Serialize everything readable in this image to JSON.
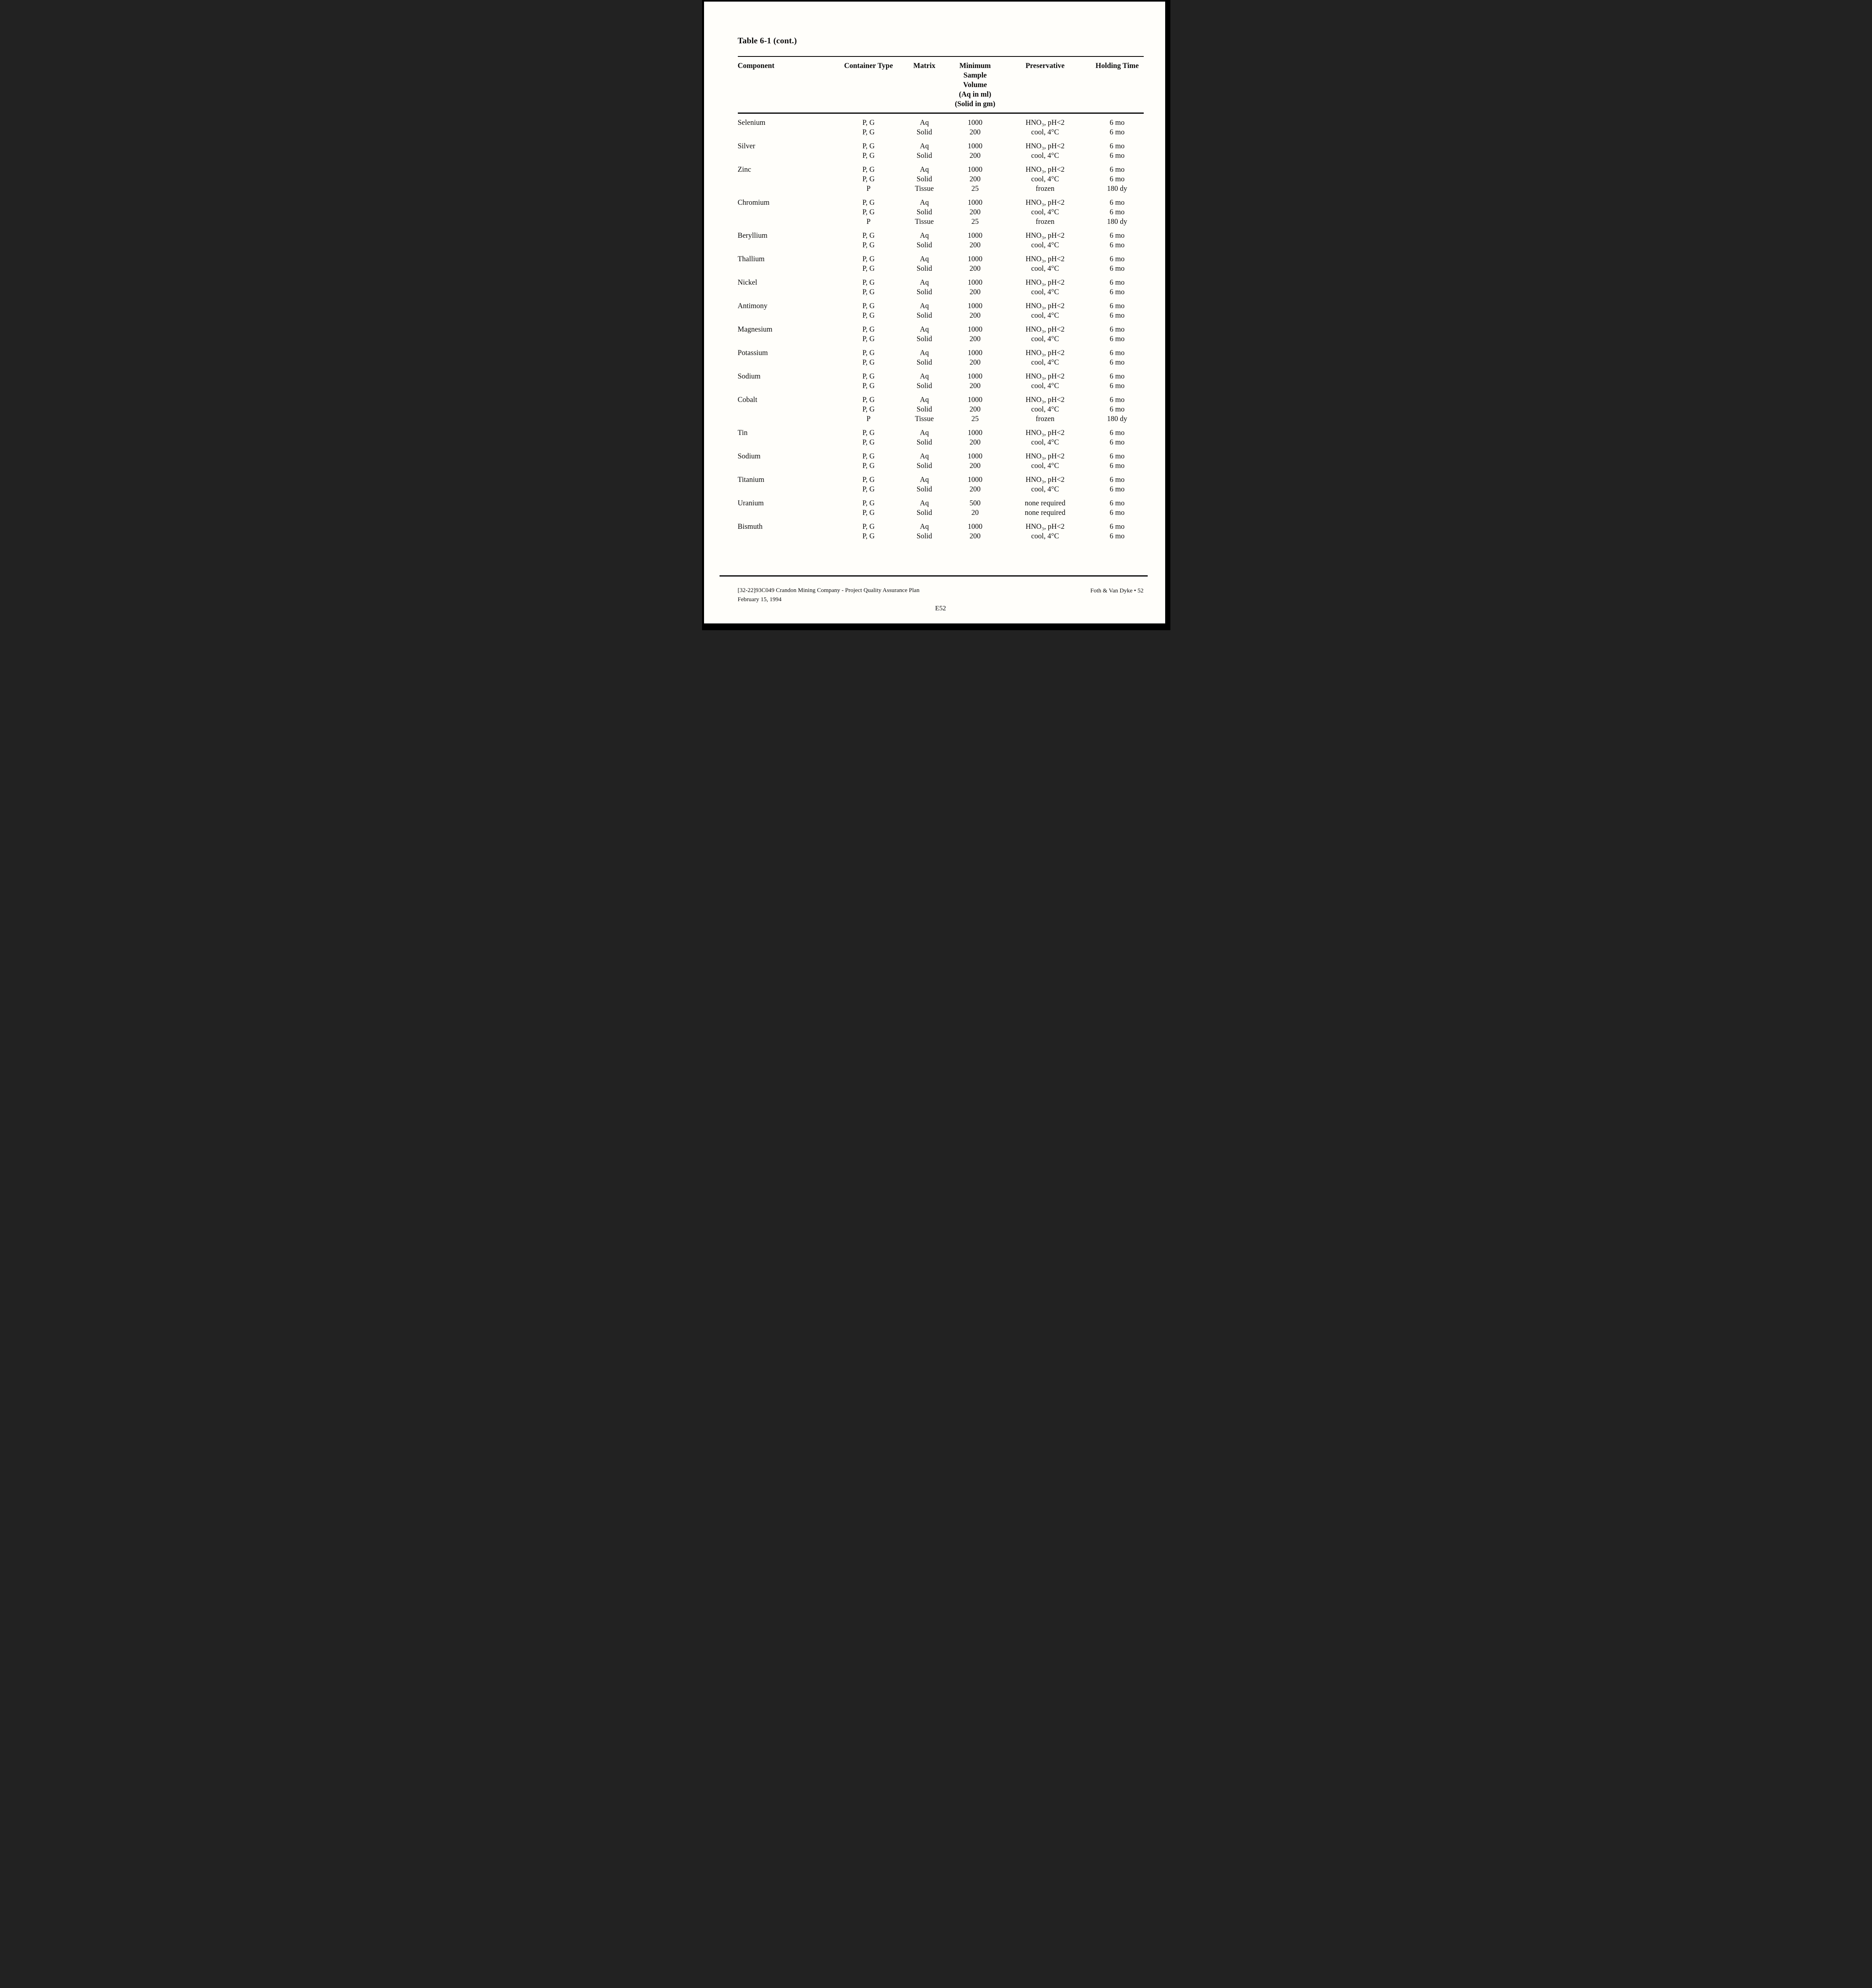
{
  "page": {
    "title": "Table 6-1 (cont.)",
    "page_number_center": "E52"
  },
  "footer": {
    "left_line1": "[32-22]93C049 Crandon Mining Company - Project Quality Assurance Plan",
    "left_line2": "February 15, 1994",
    "right": "Foth & Van Dyke • 52"
  },
  "table": {
    "headers": [
      "Component",
      "Container Type",
      "Matrix",
      "Minimum\nSample Volume\n(Aq in ml)\n(Solid in gm)",
      "Preservative",
      "Holding Time"
    ],
    "groups": [
      {
        "component": "Selenium",
        "rows": [
          [
            "P, G",
            "Aq",
            "1000",
            "HNO₃, pH<2",
            "6 mo"
          ],
          [
            "P, G",
            "Solid",
            "200",
            "cool, 4°C",
            "6 mo"
          ]
        ]
      },
      {
        "component": "Silver",
        "rows": [
          [
            "P, G",
            "Aq",
            "1000",
            "HNO₃, pH<2",
            "6 mo"
          ],
          [
            "P, G",
            "Solid",
            "200",
            "cool, 4°C",
            "6 mo"
          ]
        ]
      },
      {
        "component": "Zinc",
        "rows": [
          [
            "P, G",
            "Aq",
            "1000",
            "HNO₃, pH<2",
            "6 mo"
          ],
          [
            "P, G",
            "Solid",
            "200",
            "cool, 4°C",
            "6 mo"
          ],
          [
            "P",
            "Tissue",
            "25",
            "frozen",
            "180 dy"
          ]
        ]
      },
      {
        "component": "Chromium",
        "rows": [
          [
            "P, G",
            "Aq",
            "1000",
            "HNO₃, pH<2",
            "6 mo"
          ],
          [
            "P, G",
            "Solid",
            "200",
            "cool, 4°C",
            "6 mo"
          ],
          [
            "P",
            "Tissue",
            "25",
            "frozen",
            "180 dy"
          ]
        ]
      },
      {
        "component": "Beryllium",
        "rows": [
          [
            "P, G",
            "Aq",
            "1000",
            "HNO₃, pH<2",
            "6 mo"
          ],
          [
            "P, G",
            "Solid",
            "200",
            "cool, 4°C",
            "6 mo"
          ]
        ]
      },
      {
        "component": "Thallium",
        "rows": [
          [
            "P, G",
            "Aq",
            "1000",
            "HNO₃, pH<2",
            "6 mo"
          ],
          [
            "P, G",
            "Solid",
            "200",
            "cool, 4°C",
            "6 mo"
          ]
        ]
      },
      {
        "component": "Nickel",
        "rows": [
          [
            "P, G",
            "Aq",
            "1000",
            "HNO₃, pH<2",
            "6 mo"
          ],
          [
            "P, G",
            "Solid",
            "200",
            "cool, 4°C",
            "6 mo"
          ]
        ]
      },
      {
        "component": "Antimony",
        "rows": [
          [
            "P, G",
            "Aq",
            "1000",
            "HNO₃, pH<2",
            "6 mo"
          ],
          [
            "P, G",
            "Solid",
            "200",
            "cool, 4°C",
            "6 mo"
          ]
        ]
      },
      {
        "component": "Magnesium",
        "rows": [
          [
            "P, G",
            "Aq",
            "1000",
            "HNO₃, pH<2",
            "6 mo"
          ],
          [
            "P, G",
            "Solid",
            "200",
            "cool, 4°C",
            "6 mo"
          ]
        ]
      },
      {
        "component": "Potassium",
        "rows": [
          [
            "P, G",
            "Aq",
            "1000",
            "HNO₃, pH<2",
            "6 mo"
          ],
          [
            "P, G",
            "Solid",
            "200",
            "cool, 4°C",
            "6 mo"
          ]
        ]
      },
      {
        "component": "Sodium",
        "rows": [
          [
            "P, G",
            "Aq",
            "1000",
            "HNO₃, pH<2",
            "6 mo"
          ],
          [
            "P, G",
            "Solid",
            "200",
            "cool, 4°C",
            "6 mo"
          ]
        ]
      },
      {
        "component": "Cobalt",
        "rows": [
          [
            "P, G",
            "Aq",
            "1000",
            "HNO₃, pH<2",
            "6 mo"
          ],
          [
            "P, G",
            "Solid",
            "200",
            "cool, 4°C",
            "6 mo"
          ],
          [
            "P",
            "Tissue",
            "25",
            "frozen",
            "180 dy"
          ]
        ]
      },
      {
        "component": "Tin",
        "rows": [
          [
            "P, G",
            "Aq",
            "1000",
            "HNO₃, pH<2",
            "6 mo"
          ],
          [
            "P, G",
            "Solid",
            "200",
            "cool, 4°C",
            "6 mo"
          ]
        ]
      },
      {
        "component": "Sodium",
        "rows": [
          [
            "P, G",
            "Aq",
            "1000",
            "HNO₃, pH<2",
            "6 mo"
          ],
          [
            "P, G",
            "Solid",
            "200",
            "cool, 4°C",
            "6 mo"
          ]
        ]
      },
      {
        "component": "Titanium",
        "rows": [
          [
            "P, G",
            "Aq",
            "1000",
            "HNO₃, pH<2",
            "6 mo"
          ],
          [
            "P, G",
            "Solid",
            "200",
            "cool, 4°C",
            "6 mo"
          ]
        ]
      },
      {
        "component": "Uranium",
        "rows": [
          [
            "P, G",
            "Aq",
            "500",
            "none required",
            "6 mo"
          ],
          [
            "P, G",
            "Solid",
            "20",
            "none required",
            "6 mo"
          ]
        ]
      },
      {
        "component": "Bismuth",
        "rows": [
          [
            "P, G",
            "Aq",
            "1000",
            "HNO₃, pH<2",
            "6 mo"
          ],
          [
            "P, G",
            "Solid",
            "200",
            "cool, 4°C",
            "6 mo"
          ]
        ]
      }
    ]
  }
}
